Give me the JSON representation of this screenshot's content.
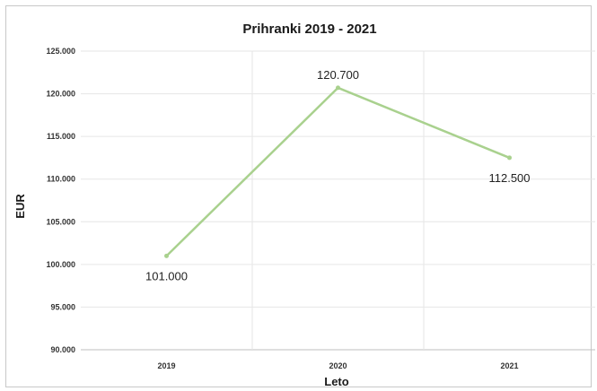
{
  "chart_data": {
    "type": "line",
    "title": "Prihranki 2019 - 2021",
    "xlabel": "Leto",
    "ylabel": "EUR",
    "categories": [
      "2019",
      "2020",
      "2021"
    ],
    "series": [
      {
        "values": [
          101000,
          120700,
          112500
        ],
        "data_labels": [
          "101.000",
          "120.700",
          "112.500"
        ],
        "color": "#a9d18e"
      }
    ],
    "ylim": [
      90000,
      125000
    ],
    "yticks": [
      90000,
      95000,
      100000,
      105000,
      110000,
      115000,
      120000,
      125000
    ],
    "ytick_labels": [
      "90.000",
      "95.000",
      "100.000",
      "105.000",
      "110.000",
      "115.000",
      "120.000",
      "125.000"
    ],
    "grid": true,
    "legend": "none"
  }
}
